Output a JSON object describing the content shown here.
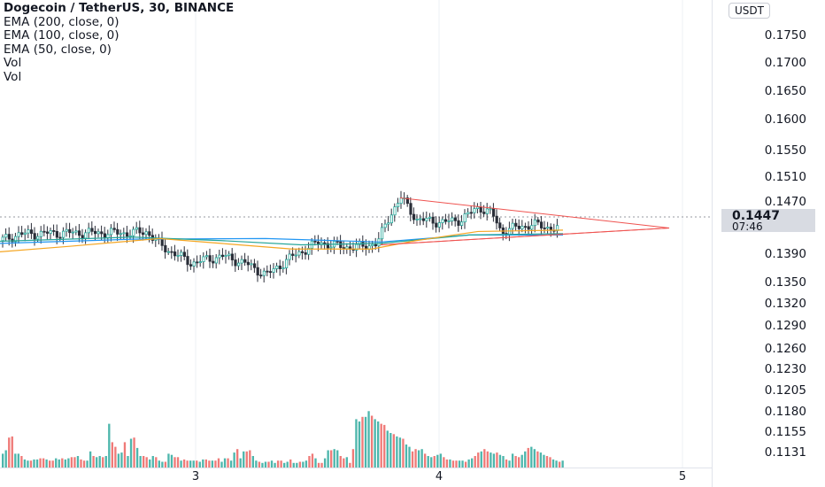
{
  "legend": {
    "symbol": "Dogecoin / TetherUS, 30, BINANCE",
    "indicators": [
      "EMA (200, close, 0)",
      "EMA (100, close, 0)",
      "EMA (50, close, 0)",
      "Vol",
      "Vol"
    ]
  },
  "price_axis": {
    "currency": "USDT",
    "ticks": [
      "0.1750",
      "0.1700",
      "0.1650",
      "0.1600",
      "0.1550",
      "0.1510",
      "0.1470",
      "0.1390",
      "0.1350",
      "0.1320",
      "0.1290",
      "0.1260",
      "0.1230",
      "0.1205",
      "0.1180",
      "0.1155",
      "0.1131"
    ],
    "last_price": "0.1447",
    "countdown": "07:46"
  },
  "time_axis": {
    "ticks": [
      "3",
      "4",
      "5"
    ]
  },
  "colors": {
    "up": "#26a69a",
    "down": "#ef5350",
    "ema200": "#2196f3",
    "ema100": "#26a69a",
    "ema50": "#f5a623",
    "triangle": "#ef5350",
    "vol_up": "#4db6ac",
    "vol_down": "#ef7a78"
  },
  "chart_data": {
    "type": "candlestick",
    "x_labels": [
      "3",
      "4",
      "5"
    ],
    "price_range": [
      0.1131,
      0.175
    ],
    "last_price": 0.1447,
    "volume_max_relative": 1.0,
    "volumes": [
      0.12,
      0.15,
      0.26,
      0.27,
      0.12,
      0.12,
      0.1,
      0.07,
      0.06,
      0.06,
      0.07,
      0.07,
      0.08,
      0.08,
      0.07,
      0.06,
      0.06,
      0.08,
      0.07,
      0.08,
      0.07,
      0.08,
      0.09,
      0.09,
      0.1,
      0.07,
      0.06,
      0.06,
      0.14,
      0.1,
      0.09,
      0.1,
      0.09,
      0.1,
      0.38,
      0.22,
      0.18,
      0.12,
      0.13,
      0.22,
      0.1,
      0.25,
      0.26,
      0.17,
      0.1,
      0.1,
      0.09,
      0.07,
      0.1,
      0.09,
      0.06,
      0.05,
      0.05,
      0.12,
      0.11,
      0.09,
      0.09,
      0.06,
      0.07,
      0.06,
      0.06,
      0.06,
      0.06,
      0.05,
      0.07,
      0.07,
      0.06,
      0.06,
      0.06,
      0.08,
      0.05,
      0.08,
      0.08,
      0.06,
      0.13,
      0.16,
      0.08,
      0.14,
      0.14,
      0.15,
      0.1,
      0.06,
      0.05,
      0.04,
      0.05,
      0.05,
      0.06,
      0.04,
      0.06,
      0.06,
      0.04,
      0.05,
      0.07,
      0.04,
      0.04,
      0.05,
      0.05,
      0.06,
      0.1,
      0.12,
      0.08,
      0.04,
      0.04,
      0.08,
      0.15,
      0.15,
      0.16,
      0.15,
      0.1,
      0.08,
      0.09,
      0.04,
      0.16,
      0.42,
      0.4,
      0.44,
      0.44,
      0.49,
      0.45,
      0.42,
      0.4,
      0.38,
      0.37,
      0.32,
      0.3,
      0.29,
      0.27,
      0.26,
      0.25,
      0.2,
      0.18,
      0.14,
      0.16,
      0.15,
      0.16,
      0.12,
      0.1,
      0.09,
      0.1,
      0.11,
      0.12,
      0.09,
      0.07,
      0.07,
      0.06,
      0.06,
      0.06,
      0.06,
      0.05,
      0.07,
      0.08,
      0.1,
      0.13,
      0.14,
      0.16,
      0.14,
      0.13,
      0.12,
      0.13,
      0.11,
      0.1,
      0.07,
      0.06,
      0.12,
      0.1,
      0.09,
      0.11,
      0.14,
      0.17,
      0.18,
      0.16,
      0.14,
      0.13,
      0.11,
      0.1,
      0.09,
      0.07,
      0.06,
      0.05,
      0.06
    ]
  }
}
